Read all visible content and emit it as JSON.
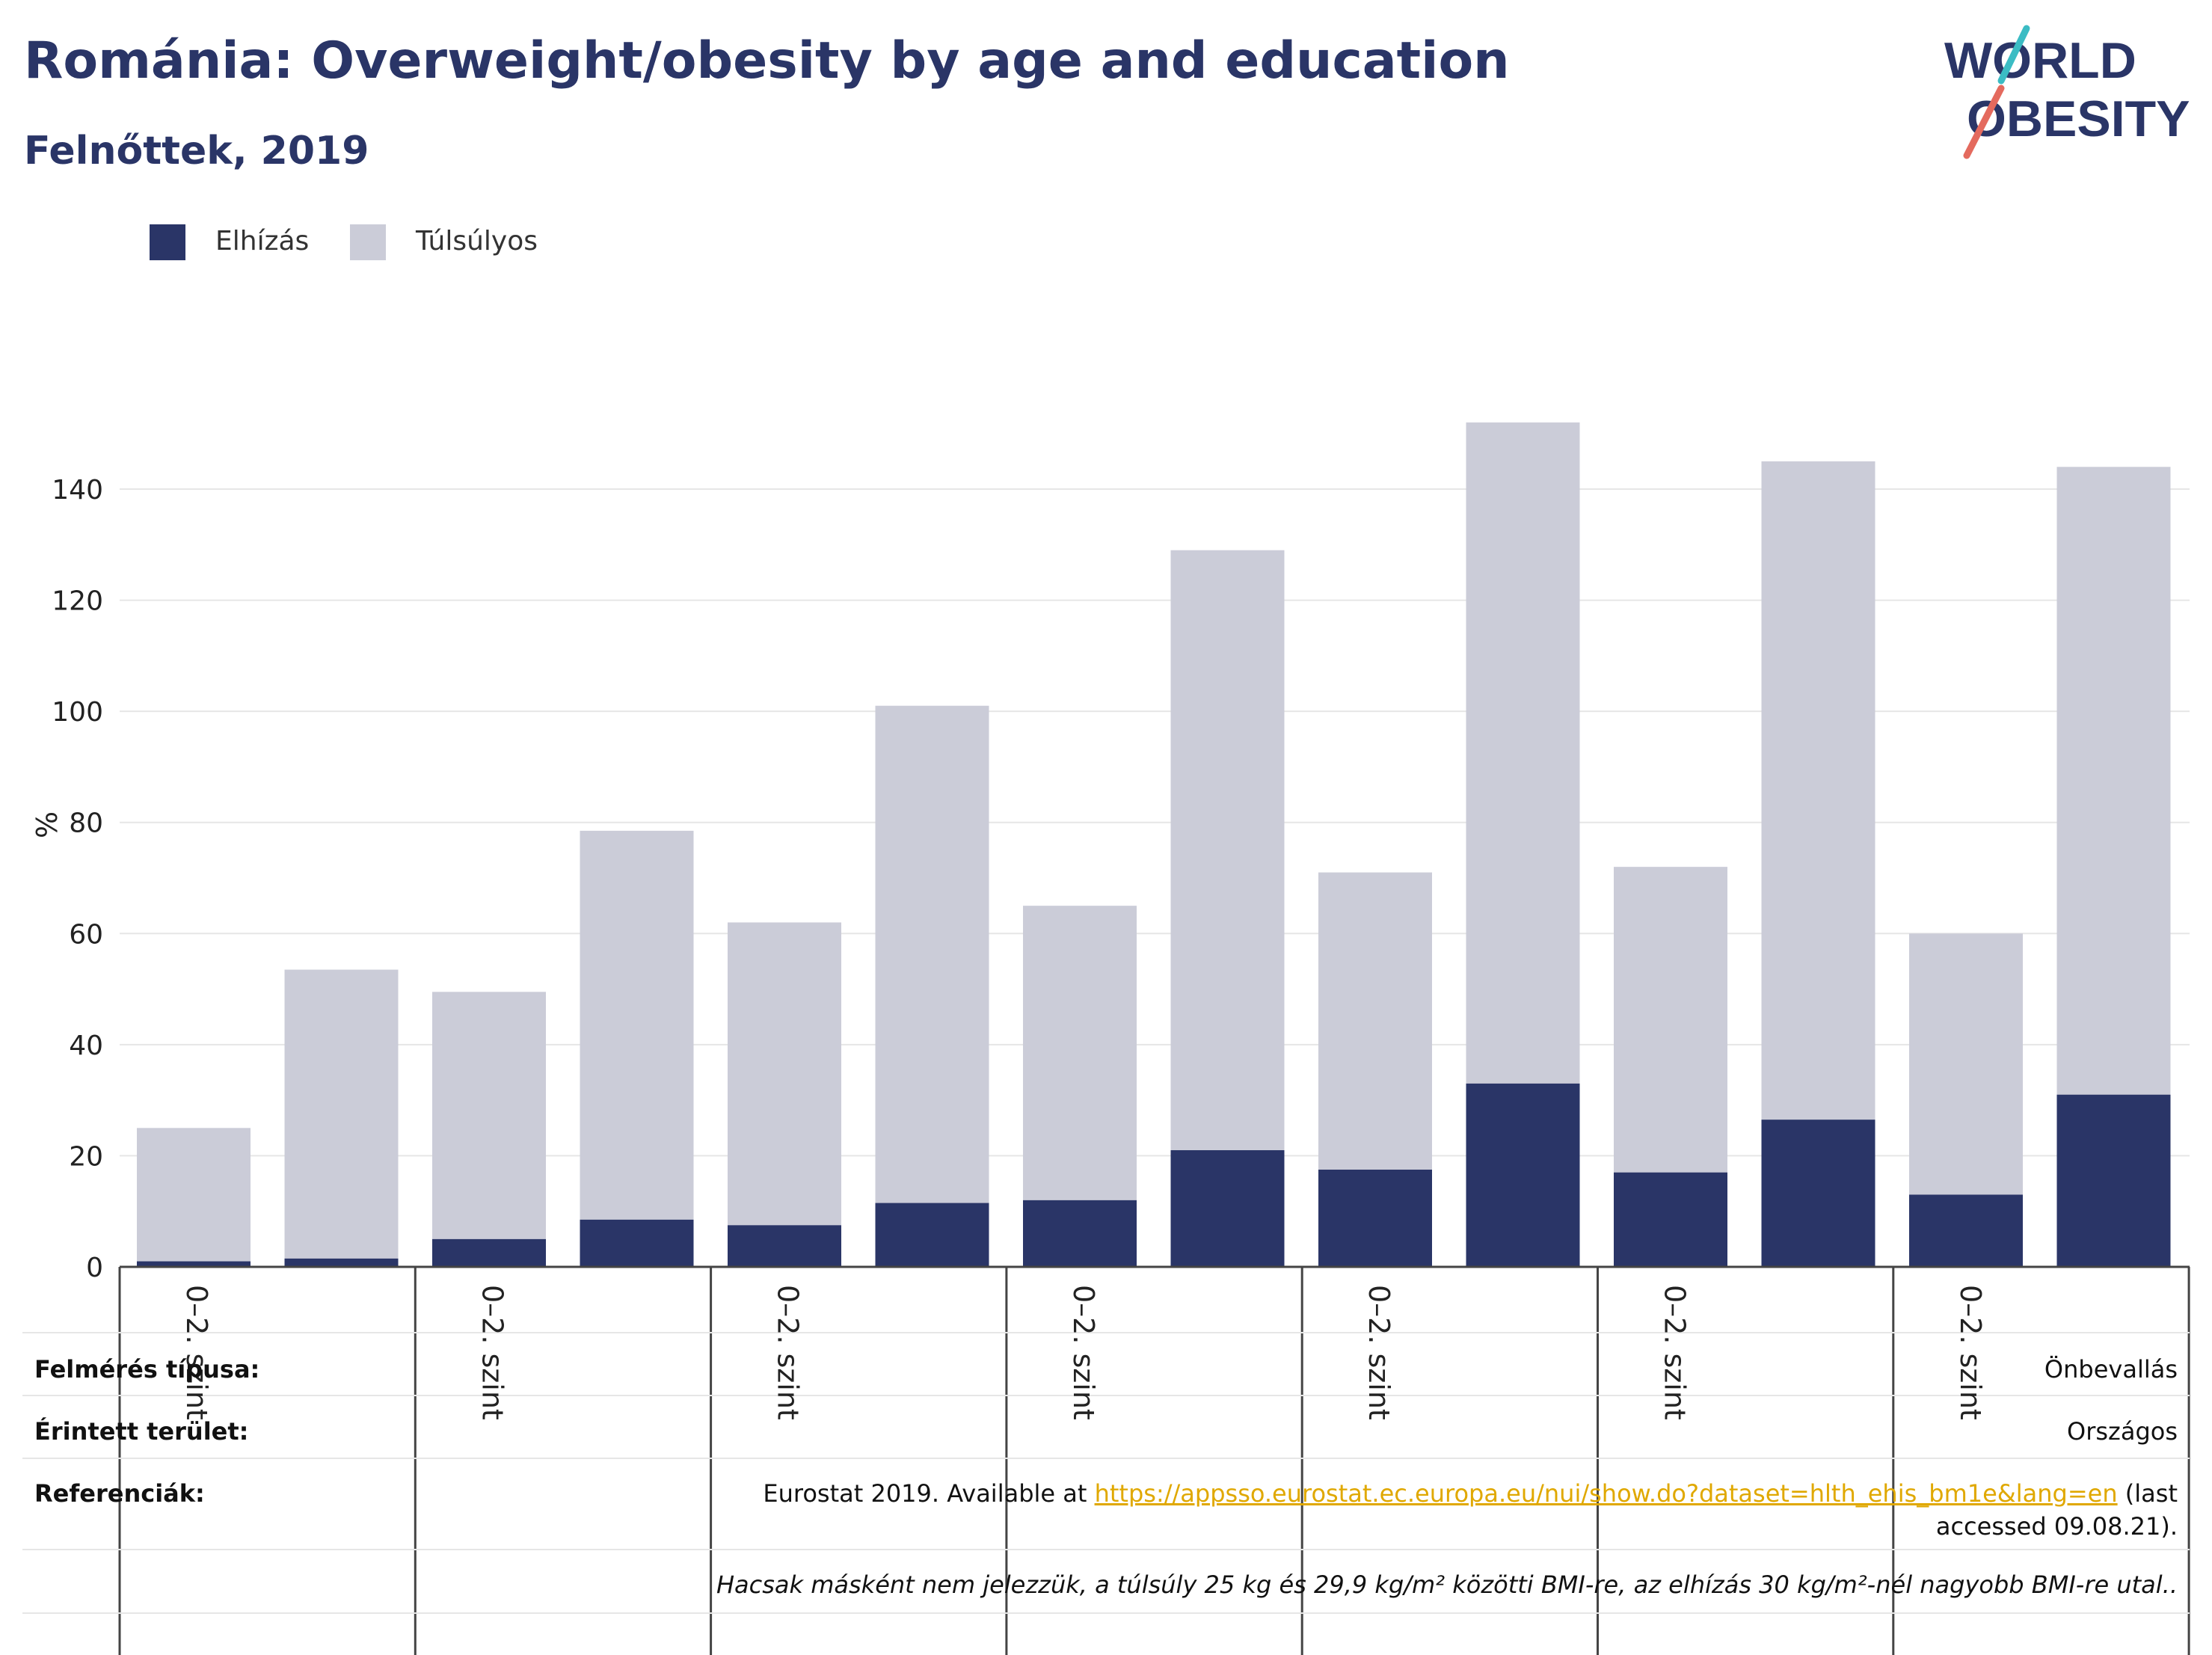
{
  "title": "Románia: Overweight/obesity by age and education",
  "subtitle": "Felnőttek, 2019",
  "logo": {
    "line1": "WORLD",
    "line2": "OBESITY",
    "colors": {
      "text": "#2a3567",
      "teal": "#3bbcc4",
      "coral": "#e46a5e"
    }
  },
  "colors": {
    "obese": "#2a3567",
    "overweight": "#cbccd8",
    "grid": "#e6e6e6",
    "axis": "#444444",
    "link": "#e0a800"
  },
  "chart_data": {
    "type": "bar",
    "stacked": true,
    "ylabel": "%",
    "ylim": [
      0,
      155
    ],
    "yticks": [
      0,
      20,
      40,
      60,
      80,
      100,
      120,
      140
    ],
    "grid": true,
    "legend_position": "top-left",
    "group_label": "0–2. szint",
    "group_count": 7,
    "series": [
      {
        "name": "Elhízás",
        "color": "#2a3567",
        "values": [
          1,
          1.5,
          5,
          8.5,
          7.5,
          11.5,
          12,
          21,
          17.5,
          33,
          17,
          26.5,
          13,
          31
        ]
      },
      {
        "name": "Túlsúlyos",
        "color": "#cbccd8",
        "values": [
          24,
          52,
          44.5,
          70,
          54.5,
          89.5,
          53,
          108,
          53.5,
          119,
          55,
          118.5,
          47,
          113
        ]
      }
    ]
  },
  "info": {
    "survey_type_label": "Felmérés típusa:",
    "survey_type_value": "Önbevallás",
    "area_label": "Érintett terület:",
    "area_value": "Országos",
    "references_label": "Referenciák:",
    "references_prefix": "Eurostat 2019. Available at ",
    "references_link": "https://appsso.eurostat.ec.europa.eu/nui/show.do?dataset=hlth_ehis_bm1e&lang=en",
    "references_suffix": " (last accessed 09.08.21).",
    "note": "Hacsak másként nem jelezzük, a túlsúly 25 kg és 29,9 kg/m² közötti BMI-re, az elhízás 30 kg/m²-nél nagyobb BMI-re utal.."
  }
}
